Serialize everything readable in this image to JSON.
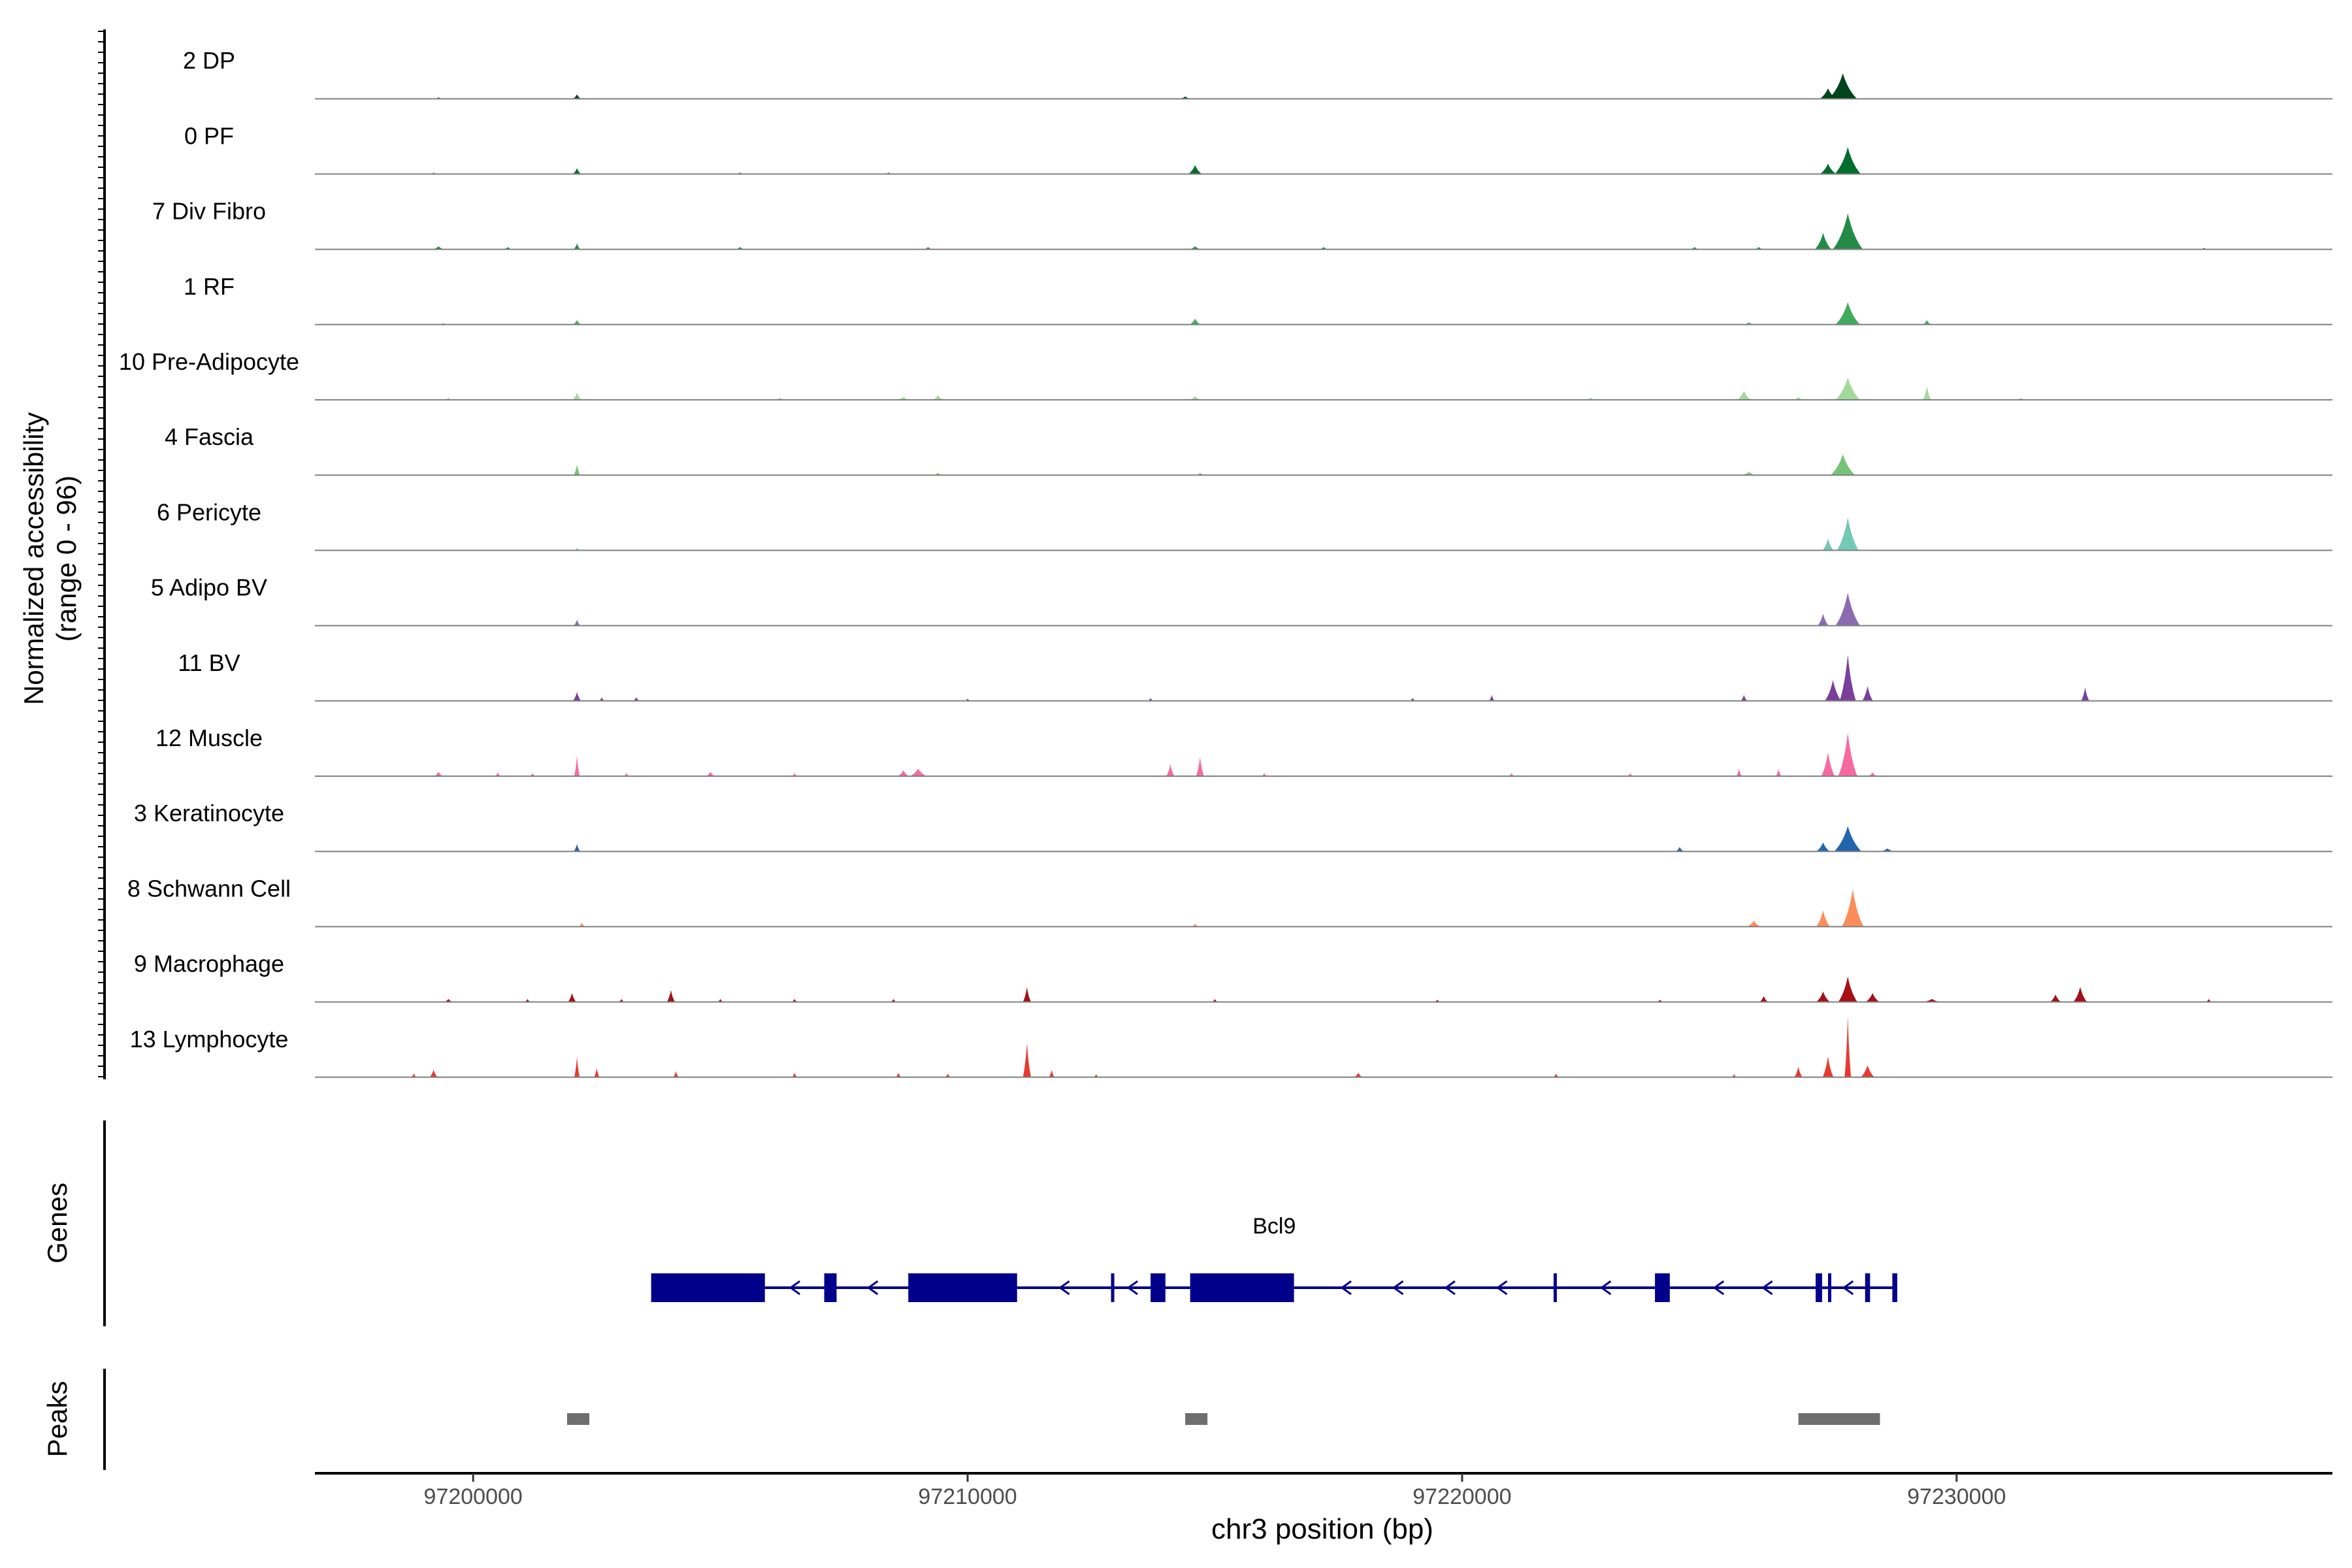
{
  "chart_data": {
    "type": "area",
    "title": "",
    "chromosome": "chr3",
    "xlabel": "chr3 position (bp)",
    "xlim": [
      97196800,
      97237600
    ],
    "xticks": [
      97200000,
      97210000,
      97220000,
      97230000
    ],
    "xtick_labels": [
      "97200000",
      "97210000",
      "97220000",
      "97230000"
    ],
    "ylabel": "Normalized accessibility",
    "ylabel_range": "(range 0 - 96)",
    "ylim": [
      0,
      96
    ],
    "genes_label": "Genes",
    "peaks_label": "Peaks",
    "tracks": [
      {
        "name": "2 DP",
        "color": "#00441b",
        "peaks": [
          [
            97202100,
            6,
            150
          ],
          [
            97227700,
            34,
            520
          ],
          [
            97227400,
            14,
            300
          ],
          [
            97214400,
            3,
            200
          ],
          [
            97199300,
            2,
            80
          ]
        ]
      },
      {
        "name": "0 PF",
        "color": "#006d2c",
        "peaks": [
          [
            97202100,
            8,
            150
          ],
          [
            97214600,
            12,
            250
          ],
          [
            97227800,
            36,
            480
          ],
          [
            97227400,
            14,
            300
          ],
          [
            97199200,
            2,
            100
          ],
          [
            97205400,
            2,
            150
          ],
          [
            97208400,
            2,
            150
          ]
        ]
      },
      {
        "name": "7 Div Fibro",
        "color": "#238b45",
        "peaks": [
          [
            97227800,
            48,
            550
          ],
          [
            97227300,
            22,
            300
          ],
          [
            97202100,
            8,
            120
          ],
          [
            97199300,
            4,
            200
          ],
          [
            97200700,
            3,
            150
          ],
          [
            97205400,
            3,
            150
          ],
          [
            97209200,
            3,
            150
          ],
          [
            97214600,
            4,
            200
          ],
          [
            97217200,
            3,
            150
          ],
          [
            97224700,
            3,
            150
          ],
          [
            97226000,
            3,
            150
          ],
          [
            97235000,
            2,
            120
          ]
        ]
      },
      {
        "name": "1 RF",
        "color": "#41ab5d",
        "peaks": [
          [
            97202100,
            6,
            150
          ],
          [
            97214600,
            8,
            200
          ],
          [
            97227800,
            30,
            450
          ],
          [
            97229400,
            6,
            150
          ],
          [
            97225800,
            3,
            200
          ],
          [
            97199400,
            2,
            100
          ]
        ]
      },
      {
        "name": "10 Pre-Adipocyte",
        "color": "#a1d99b",
        "peaks": [
          [
            97202100,
            10,
            150
          ],
          [
            97209400,
            6,
            200
          ],
          [
            97208700,
            4,
            200
          ],
          [
            97214600,
            5,
            200
          ],
          [
            97225700,
            12,
            250
          ],
          [
            97227800,
            30,
            450
          ],
          [
            97229400,
            18,
            150
          ],
          [
            97226800,
            4,
            150
          ],
          [
            97199500,
            3,
            150
          ],
          [
            97206200,
            3,
            150
          ],
          [
            97222600,
            3,
            150
          ],
          [
            97231300,
            3,
            120
          ]
        ]
      },
      {
        "name": "4 Fascia",
        "color": "#74c476",
        "peaks": [
          [
            97202100,
            14,
            120
          ],
          [
            97227700,
            28,
            450
          ],
          [
            97225800,
            4,
            250
          ],
          [
            97209400,
            3,
            150
          ],
          [
            97214700,
            3,
            150
          ]
        ]
      },
      {
        "name": "6 Pericyte",
        "color": "#74c9b4",
        "peaks": [
          [
            97227800,
            44,
            400
          ],
          [
            97227400,
            16,
            200
          ],
          [
            97202100,
            3,
            120
          ]
        ]
      },
      {
        "name": "5 Adipo BV",
        "color": "#8c6bb1",
        "peaks": [
          [
            97227800,
            44,
            450
          ],
          [
            97227300,
            16,
            200
          ],
          [
            97202100,
            8,
            120
          ]
        ]
      },
      {
        "name": "11 BV",
        "color": "#7a3f9a",
        "peaks": [
          [
            97227800,
            62,
            300
          ],
          [
            97227500,
            28,
            300
          ],
          [
            97228200,
            20,
            200
          ],
          [
            97202100,
            12,
            150
          ],
          [
            97202600,
            5,
            100
          ],
          [
            97203300,
            5,
            120
          ],
          [
            97225700,
            8,
            120
          ],
          [
            97232600,
            18,
            150
          ],
          [
            97213700,
            4,
            100
          ],
          [
            97219000,
            4,
            100
          ],
          [
            97220600,
            8,
            100
          ],
          [
            97210000,
            3,
            100
          ]
        ]
      },
      {
        "name": "12 Muscle",
        "color": "#f768a1",
        "peaks": [
          [
            97202100,
            28,
            100
          ],
          [
            97227800,
            58,
            350
          ],
          [
            97227400,
            32,
            250
          ],
          [
            97214700,
            26,
            150
          ],
          [
            97214100,
            16,
            150
          ],
          [
            97209000,
            10,
            300
          ],
          [
            97208700,
            8,
            200
          ],
          [
            97199300,
            6,
            150
          ],
          [
            97200500,
            5,
            100
          ],
          [
            97204800,
            6,
            150
          ],
          [
            97226400,
            10,
            100
          ],
          [
            97228300,
            5,
            150
          ],
          [
            97225600,
            10,
            100
          ],
          [
            97201200,
            4,
            100
          ],
          [
            97203100,
            4,
            100
          ],
          [
            97206500,
            4,
            100
          ],
          [
            97216000,
            4,
            100
          ],
          [
            97221000,
            4,
            100
          ],
          [
            97223400,
            4,
            100
          ]
        ]
      },
      {
        "name": "3 Keratinocyte",
        "color": "#2166ac",
        "peaks": [
          [
            97227800,
            34,
            500
          ],
          [
            97227300,
            12,
            250
          ],
          [
            97202100,
            10,
            120
          ],
          [
            97224400,
            6,
            150
          ],
          [
            97228600,
            4,
            250
          ]
        ]
      },
      {
        "name": "8 Schwann Cell",
        "color": "#fc8d59",
        "peaks": [
          [
            97227900,
            50,
            400
          ],
          [
            97227300,
            22,
            250
          ],
          [
            97225900,
            8,
            250
          ],
          [
            97202200,
            5,
            120
          ],
          [
            97214600,
            4,
            120
          ]
        ]
      },
      {
        "name": "9 Macrophage",
        "color": "#a50f15",
        "peaks": [
          [
            97227800,
            34,
            350
          ],
          [
            97227300,
            14,
            250
          ],
          [
            97228300,
            12,
            250
          ],
          [
            97211200,
            20,
            150
          ],
          [
            97204000,
            16,
            150
          ],
          [
            97202000,
            12,
            150
          ],
          [
            97232500,
            20,
            250
          ],
          [
            97232000,
            10,
            200
          ],
          [
            97226100,
            8,
            150
          ],
          [
            97199500,
            4,
            150
          ],
          [
            97201100,
            4,
            100
          ],
          [
            97203000,
            4,
            100
          ],
          [
            97205000,
            4,
            100
          ],
          [
            97206500,
            4,
            100
          ],
          [
            97208500,
            4,
            100
          ],
          [
            97215000,
            4,
            100
          ],
          [
            97219500,
            3,
            100
          ],
          [
            97224000,
            3,
            100
          ],
          [
            97229500,
            4,
            300
          ],
          [
            97235100,
            4,
            100
          ]
        ]
      },
      {
        "name": "13 Lymphocyte",
        "color": "#e8392e",
        "peaks": [
          [
            97227800,
            82,
            120
          ],
          [
            97227400,
            28,
            200
          ],
          [
            97228200,
            16,
            250
          ],
          [
            97226800,
            14,
            150
          ],
          [
            97202100,
            28,
            100
          ],
          [
            97202500,
            12,
            100
          ],
          [
            97211200,
            46,
            150
          ],
          [
            97211700,
            10,
            100
          ],
          [
            97199200,
            10,
            150
          ],
          [
            97198800,
            5,
            100
          ],
          [
            97204100,
            8,
            100
          ],
          [
            97206500,
            6,
            100
          ],
          [
            97208600,
            6,
            100
          ],
          [
            97209600,
            5,
            100
          ],
          [
            97212600,
            4,
            100
          ],
          [
            97217900,
            6,
            150
          ],
          [
            97221900,
            5,
            100
          ],
          [
            97225500,
            4,
            100
          ]
        ]
      }
    ],
    "gene": {
      "name": "Bcl9",
      "color": "#00008b",
      "strand": "-",
      "start": 97203600,
      "end": 97228800,
      "exons": [
        [
          97203600,
          97205900
        ],
        [
          97207100,
          97207350
        ],
        [
          97208800,
          97211000
        ],
        [
          97212900,
          97212960
        ],
        [
          97213700,
          97214000
        ],
        [
          97214500,
          97216600
        ],
        [
          97221850,
          97221900
        ],
        [
          97223900,
          97224200
        ],
        [
          97227150,
          97227280
        ],
        [
          97227400,
          97227450
        ],
        [
          97228150,
          97228250
        ],
        [
          97228700,
          97228800
        ]
      ]
    },
    "peak_regions": [
      [
        97201900,
        97202350
      ],
      [
        97214400,
        97214850
      ],
      [
        97226800,
        97228450
      ]
    ]
  }
}
